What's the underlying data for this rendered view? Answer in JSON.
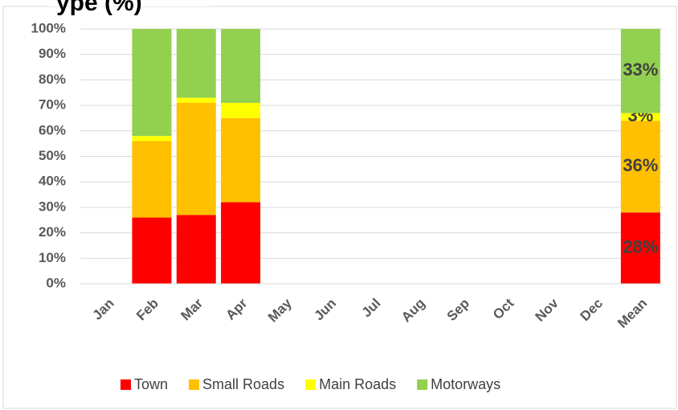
{
  "chart_data": {
    "type": "stacked_bar",
    "title": "ype (%)",
    "categories": [
      "Jan",
      "Feb",
      "Mar",
      "Apr",
      "May",
      "Jun",
      "Jul",
      "Aug",
      "Sep",
      "Oct",
      "Nov",
      "Dec",
      "Mean"
    ],
    "series": [
      {
        "name": "Town",
        "color": "#ff0000",
        "values": [
          null,
          26,
          27,
          32,
          null,
          null,
          null,
          null,
          null,
          null,
          null,
          null,
          28
        ],
        "value_labels": [
          null,
          null,
          null,
          null,
          null,
          null,
          null,
          null,
          null,
          null,
          null,
          null,
          "28%"
        ]
      },
      {
        "name": "Small Roads",
        "color": "#ffc000",
        "values": [
          null,
          30,
          44,
          33,
          null,
          null,
          null,
          null,
          null,
          null,
          null,
          null,
          36
        ],
        "value_labels": [
          null,
          null,
          null,
          null,
          null,
          null,
          null,
          null,
          null,
          null,
          null,
          null,
          "36%"
        ]
      },
      {
        "name": "Main Roads",
        "color": "#ffff00",
        "values": [
          null,
          2,
          2,
          6,
          null,
          null,
          null,
          null,
          null,
          null,
          null,
          null,
          3
        ],
        "value_labels": [
          null,
          null,
          null,
          null,
          null,
          null,
          null,
          null,
          null,
          null,
          null,
          null,
          "3%"
        ]
      },
      {
        "name": "Motorways",
        "color": "#92d050",
        "values": [
          null,
          42,
          27,
          29,
          null,
          null,
          null,
          null,
          null,
          null,
          null,
          null,
          33
        ],
        "value_labels": [
          null,
          null,
          null,
          null,
          null,
          null,
          null,
          null,
          null,
          null,
          null,
          null,
          "33%"
        ]
      }
    ],
    "ylim": [
      0,
      100
    ],
    "yticks": [
      {
        "value": 0,
        "label": "0%"
      },
      {
        "value": 10,
        "label": "10%"
      },
      {
        "value": 20,
        "label": "20%"
      },
      {
        "value": 30,
        "label": "30%"
      },
      {
        "value": 40,
        "label": "40%"
      },
      {
        "value": 50,
        "label": "50%"
      },
      {
        "value": 60,
        "label": "60%"
      },
      {
        "value": 70,
        "label": "70%"
      },
      {
        "value": 80,
        "label": "80%"
      },
      {
        "value": 90,
        "label": "90%"
      },
      {
        "value": 100,
        "label": "100%"
      }
    ],
    "grid": true,
    "legend": "bottom"
  }
}
